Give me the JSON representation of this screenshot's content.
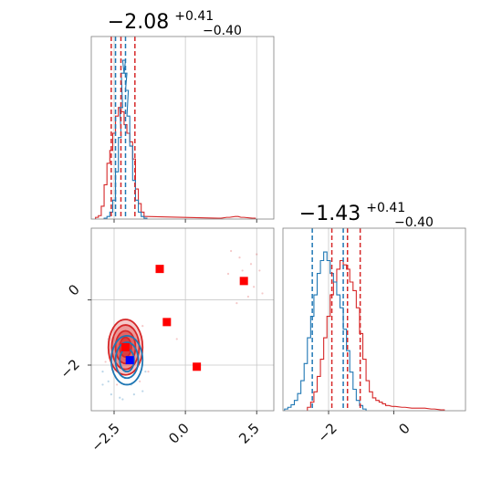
{
  "chart_data": {
    "type": "corner",
    "colors": {
      "blue": "#1f77b4",
      "red": "#d62728",
      "grid": "#c8c8c8",
      "frame": "#7f7f7f"
    },
    "grid": true,
    "param1": {
      "title": {
        "median": "−2.08",
        "plus": "+0.41",
        "minus": "−0.40"
      },
      "range": [
        -3.3,
        3.1
      ],
      "ticks": [
        -2.5,
        0.0,
        2.5
      ],
      "tick_labels": [
        "−2.5",
        "0.0",
        "2.5"
      ],
      "quantile_lines": {
        "red": [
          -2.6,
          -2.26,
          -1.77
        ],
        "blue": [
          -2.45,
          -2.1
        ]
      },
      "hist_blue": [
        [
          -2.8,
          1
        ],
        [
          -2.7,
          3
        ],
        [
          -2.6,
          8
        ],
        [
          -2.5,
          22
        ],
        [
          -2.4,
          55
        ],
        [
          -2.3,
          95
        ],
        [
          -2.25,
          130
        ],
        [
          -2.2,
          170
        ],
        [
          -2.15,
          185
        ],
        [
          -2.1,
          170
        ],
        [
          -2.05,
          150
        ],
        [
          -2.0,
          120
        ],
        [
          -1.9,
          85
        ],
        [
          -1.8,
          45
        ],
        [
          -1.7,
          22
        ],
        [
          -1.6,
          8
        ],
        [
          -1.5,
          3
        ],
        [
          -1.4,
          1
        ]
      ],
      "hist_red": [
        [
          -3.1,
          2
        ],
        [
          -3.0,
          4
        ],
        [
          -2.9,
          15
        ],
        [
          -2.8,
          40
        ],
        [
          -2.7,
          65
        ],
        [
          -2.6,
          80
        ],
        [
          -2.5,
          100
        ],
        [
          -2.4,
          120
        ],
        [
          -2.3,
          130
        ],
        [
          -2.2,
          125
        ],
        [
          -2.1,
          110
        ],
        [
          -2.0,
          100
        ],
        [
          -1.9,
          90
        ],
        [
          -1.8,
          70
        ],
        [
          -1.7,
          35
        ],
        [
          -1.6,
          18
        ],
        [
          -1.5,
          8
        ],
        [
          -1.4,
          3
        ],
        [
          1.2,
          1
        ],
        [
          1.5,
          2
        ],
        [
          1.8,
          3
        ],
        [
          2.0,
          2
        ],
        [
          2.4,
          1
        ]
      ]
    },
    "param2": {
      "title": {
        "median": "−1.43",
        "plus": "+0.41",
        "minus": "−0.40"
      },
      "range": [
        -3.4,
        2.2
      ],
      "ticks": [
        -2,
        0
      ],
      "tick_labels": [
        "−2",
        "0"
      ],
      "quantile_lines": {
        "red": [
          -1.9,
          -1.42,
          -1.03
        ],
        "blue": [
          -2.5,
          -1.55
        ]
      },
      "hist_blue": [
        [
          -3.3,
          2
        ],
        [
          -3.2,
          4
        ],
        [
          -3.1,
          7
        ],
        [
          -3.0,
          12
        ],
        [
          -2.9,
          20
        ],
        [
          -2.8,
          35
        ],
        [
          -2.7,
          55
        ],
        [
          -2.6,
          85
        ],
        [
          -2.5,
          110
        ],
        [
          -2.4,
          135
        ],
        [
          -2.3,
          160
        ],
        [
          -2.2,
          175
        ],
        [
          -2.1,
          185
        ],
        [
          -2.0,
          175
        ],
        [
          -1.9,
          160
        ],
        [
          -1.8,
          150
        ],
        [
          -1.7,
          135
        ],
        [
          -1.6,
          120
        ],
        [
          -1.5,
          95
        ],
        [
          -1.4,
          70
        ],
        [
          -1.3,
          45
        ],
        [
          -1.2,
          25
        ],
        [
          -1.1,
          12
        ],
        [
          -1.0,
          6
        ],
        [
          -0.9,
          2
        ]
      ],
      "hist_red": [
        [
          -2.6,
          4
        ],
        [
          -2.5,
          10
        ],
        [
          -2.4,
          22
        ],
        [
          -2.3,
          40
        ],
        [
          -2.2,
          60
        ],
        [
          -2.1,
          85
        ],
        [
          -2.0,
          110
        ],
        [
          -1.9,
          135
        ],
        [
          -1.8,
          150
        ],
        [
          -1.7,
          165
        ],
        [
          -1.6,
          175
        ],
        [
          -1.5,
          170
        ],
        [
          -1.4,
          165
        ],
        [
          -1.3,
          150
        ],
        [
          -1.2,
          140
        ],
        [
          -1.1,
          120
        ],
        [
          -1.0,
          90
        ],
        [
          -0.9,
          60
        ],
        [
          -0.8,
          35
        ],
        [
          -0.7,
          22
        ],
        [
          -0.6,
          15
        ],
        [
          -0.5,
          12
        ],
        [
          -0.4,
          10
        ],
        [
          -0.3,
          8
        ],
        [
          -0.2,
          6
        ],
        [
          0.0,
          5
        ],
        [
          0.3,
          4
        ],
        [
          0.6,
          3
        ],
        [
          0.9,
          3
        ],
        [
          1.2,
          2
        ],
        [
          1.5,
          1
        ]
      ]
    },
    "joint": {
      "red_contours": [
        {
          "center": [
            -2.1,
            -1.45
          ],
          "radius": [
            0.6,
            0.85
          ],
          "fill_opacity": 0.25
        },
        {
          "center": [
            -2.1,
            -1.45
          ],
          "radius": [
            0.48,
            0.68
          ],
          "fill_opacity": 0.3
        },
        {
          "center": [
            -2.1,
            -1.45
          ],
          "radius": [
            0.35,
            0.5
          ],
          "fill_opacity": 0.45
        },
        {
          "center": [
            -2.1,
            -1.45
          ],
          "radius": [
            0.2,
            0.3
          ],
          "fill_opacity": 0.6
        }
      ],
      "blue_contours": [
        {
          "center": [
            -2.05,
            -1.85
          ],
          "radius": [
            0.55,
            0.75
          ]
        },
        {
          "center": [
            -2.05,
            -1.85
          ],
          "radius": [
            0.4,
            0.55
          ]
        },
        {
          "center": [
            -2.05,
            -1.85
          ],
          "radius": [
            0.25,
            0.35
          ]
        }
      ],
      "red_squares": [
        [
          -0.9,
          0.95
        ],
        [
          2.05,
          0.58
        ],
        [
          -0.65,
          -0.68
        ],
        [
          0.4,
          -2.05
        ],
        [
          -2.1,
          -1.45
        ]
      ],
      "blue_square": [
        -1.95,
        -1.85
      ],
      "scatter_red": [
        [
          1.6,
          1.5
        ],
        [
          1.9,
          1.3
        ],
        [
          2.3,
          1.1
        ],
        [
          2.6,
          0.9
        ],
        [
          2.4,
          0.4
        ],
        [
          2.2,
          0.1
        ],
        [
          1.8,
          -0.1
        ],
        [
          2.7,
          0.2
        ],
        [
          1.5,
          0.8
        ],
        [
          2.0,
          0.9
        ],
        [
          2.5,
          1.4
        ],
        [
          -0.3,
          -1.2
        ],
        [
          -2.6,
          -1.0
        ],
        [
          -1.5,
          -0.8
        ],
        [
          -2.8,
          -1.9
        ],
        [
          -1.3,
          -2.2
        ],
        [
          -2.4,
          -2.6
        ],
        [
          -1.6,
          -2.5
        ]
      ],
      "scatter_blue": [
        [
          -2.9,
          -2.6
        ],
        [
          -2.6,
          -2.9
        ],
        [
          -2.3,
          -3.0
        ],
        [
          -1.8,
          -2.9
        ],
        [
          -1.5,
          -2.8
        ],
        [
          -2.9,
          -2.2
        ],
        [
          -2.7,
          -1.2
        ],
        [
          -1.4,
          -2.2
        ],
        [
          -2.2,
          -3.05
        ],
        [
          -1.9,
          -2.6
        ],
        [
          -2.7,
          -2.5
        ],
        [
          -1.6,
          -1.5
        ]
      ]
    }
  }
}
